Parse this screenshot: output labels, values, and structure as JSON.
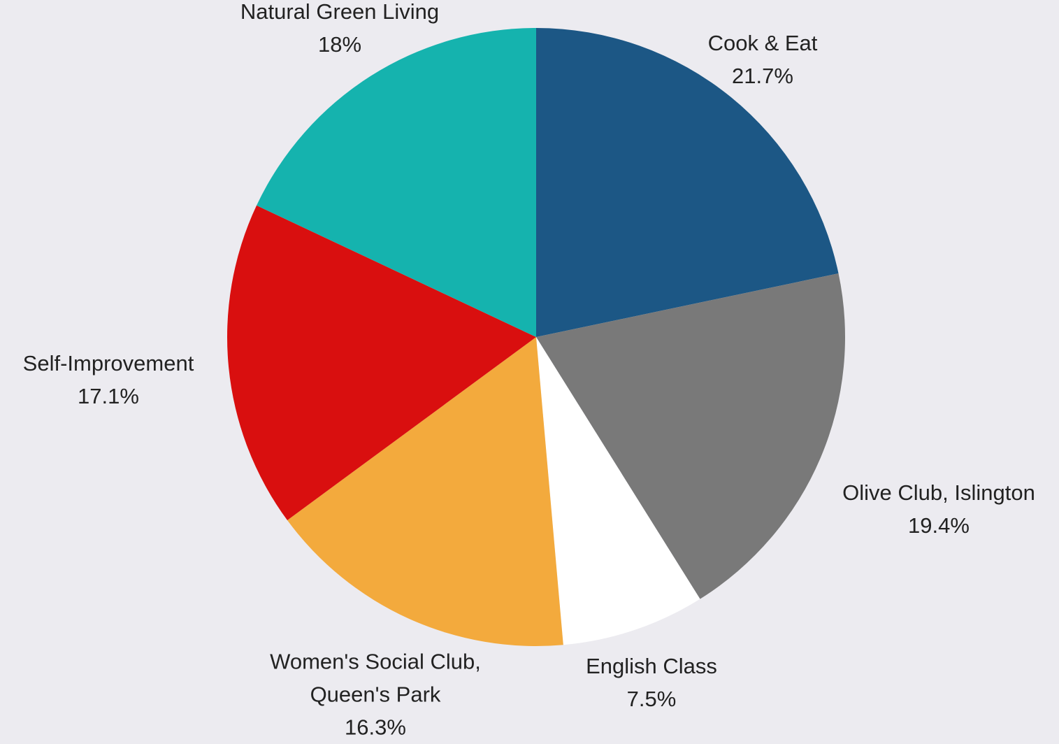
{
  "chart_data": {
    "type": "pie",
    "categories": [
      "Cook & Eat",
      "Olive Club, Islington",
      "English Class",
      "Women's Social Club, Queen's Park",
      "Self-Improvement",
      "Natural Green Living"
    ],
    "values": [
      21.7,
      19.4,
      7.5,
      16.3,
      17.1,
      18
    ],
    "value_labels": [
      "21.7%",
      "19.4%",
      "7.5%",
      "16.3%",
      "17.1%",
      "18%"
    ],
    "colors": [
      "#1c5785",
      "#797979",
      "#ffffff",
      "#f3aa3d",
      "#d90f0f",
      "#15b3ae"
    ]
  }
}
